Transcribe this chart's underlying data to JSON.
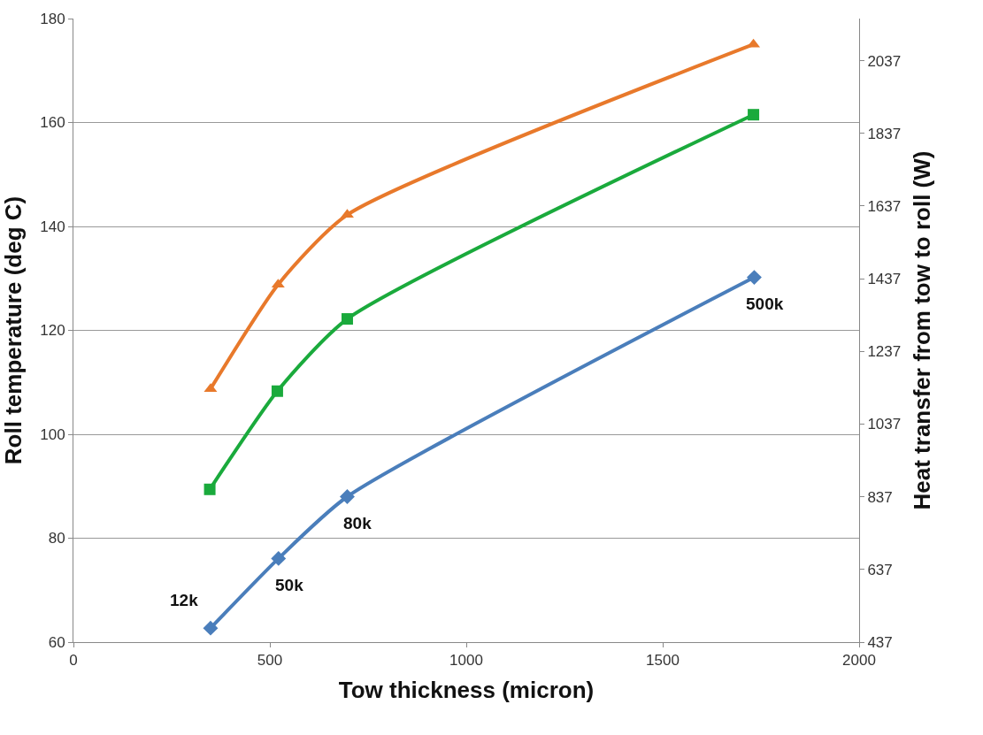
{
  "chart_data": {
    "type": "line",
    "xlabel": "Tow thickness (micron)",
    "ylabel": "Roll temperature (deg C)",
    "y2label": "Heat transfer from tow to roll (W)",
    "xlim": [
      0,
      2000
    ],
    "xticks": [
      0,
      500,
      1000,
      1500,
      2000
    ],
    "ylim": [
      60,
      180
    ],
    "yticks": [
      60,
      80,
      100,
      120,
      140,
      160,
      180
    ],
    "y2lim": [
      437,
      2153
    ],
    "y2ticks": [
      437,
      637,
      837,
      1037,
      1237,
      1437,
      1637,
      1837,
      2037
    ],
    "grid": "y",
    "line_style": "solid",
    "series": [
      {
        "color": "#e8792b",
        "marker": "triangle",
        "axis": "y2",
        "x": [
          349,
          521,
          697,
          1731
        ],
        "values": [
          1134,
          1421,
          1613,
          2082
        ]
      },
      {
        "color": "#1aaa3c",
        "marker": "square",
        "x": [
          347,
          519,
          697,
          1731
        ],
        "values": [
          89.4,
          108.3,
          122.2,
          161.5
        ]
      },
      {
        "color": "#4a7ebb",
        "marker": "diamond",
        "x": [
          349,
          522,
          697,
          1733
        ],
        "values": [
          62.7,
          76.1,
          88.0,
          130.2
        ]
      }
    ],
    "annotations": [
      {
        "text": "12k",
        "x": 349,
        "y": 62.7
      },
      {
        "text": "50k",
        "x": 522,
        "y": 76.1
      },
      {
        "text": "80k",
        "x": 697,
        "y": 88.0
      },
      {
        "text": "500k",
        "x": 1733,
        "y": 130.2
      }
    ]
  }
}
